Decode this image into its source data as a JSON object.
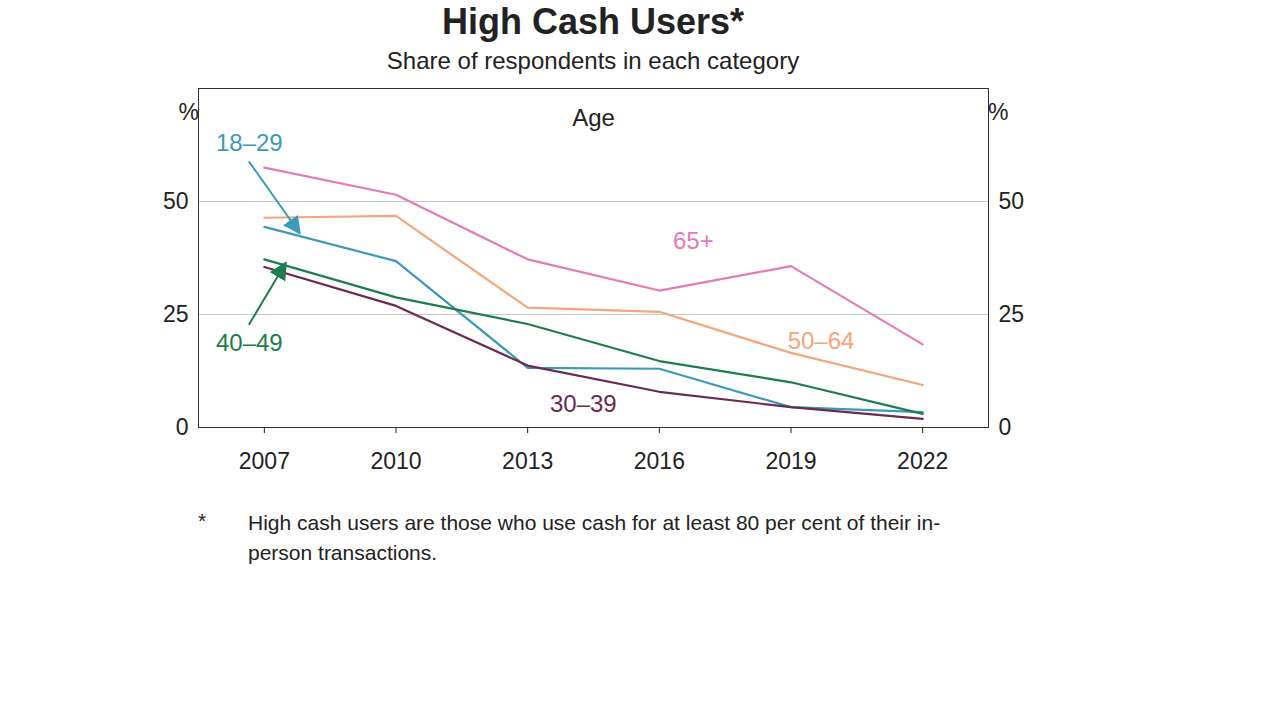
{
  "chart_data": {
    "type": "line",
    "title": "High Cash Users*",
    "subtitle": "Share of respondents in each category",
    "panel_title": "Age",
    "ylabel": "%",
    "footnote_marker": "*",
    "footnote": "High cash users are those who use cash for at least 80 per cent of their in-person transactions.",
    "x": [
      2007,
      2010,
      2013,
      2016,
      2019,
      2022
    ],
    "xlim": [
      2005.5,
      2023.5
    ],
    "xticks": [
      2007,
      2010,
      2013,
      2016,
      2019,
      2022
    ],
    "ylim": [
      0,
      75
    ],
    "yticks": [
      0,
      25,
      50
    ],
    "grid": true,
    "series": [
      {
        "name": "18–29",
        "color": "#3b9ab8",
        "values": [
          44.4,
          36.8,
          13.2,
          13.0,
          4.5,
          3.4
        ]
      },
      {
        "name": "30–39",
        "color": "#6b2a4f",
        "values": [
          35.5,
          26.9,
          13.7,
          7.9,
          4.5,
          1.9
        ]
      },
      {
        "name": "40–49",
        "color": "#1e7d4c",
        "values": [
          37.2,
          28.8,
          22.9,
          14.7,
          10.0,
          3.0
        ]
      },
      {
        "name": "50–64",
        "color": "#f4a57c",
        "values": [
          46.4,
          46.8,
          26.5,
          25.6,
          16.5,
          9.4
        ]
      },
      {
        "name": "65+",
        "color": "#e57ab5",
        "values": [
          57.5,
          51.5,
          37.2,
          30.3,
          35.7,
          18.4
        ]
      }
    ]
  }
}
